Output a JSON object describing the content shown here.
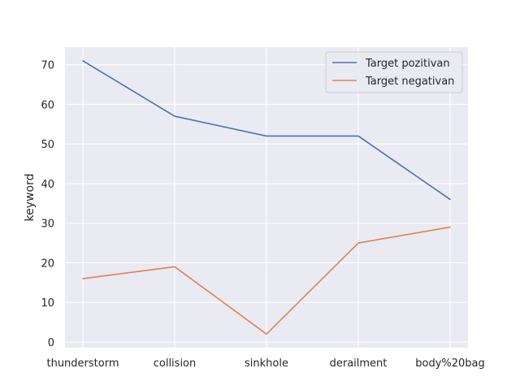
{
  "chart_data": {
    "type": "line",
    "title": "",
    "xlabel": "",
    "ylabel": "keyword",
    "categories": [
      "thunderstorm",
      "collision",
      "sinkhole",
      "derailment",
      "body%20bag"
    ],
    "series": [
      {
        "name": "Target pozitivan",
        "color": "#4c72b0",
        "values": [
          71,
          57,
          52,
          52,
          36
        ]
      },
      {
        "name": "Target negativan",
        "color": "#dd8452",
        "values": [
          16,
          19,
          2,
          25,
          29
        ]
      }
    ],
    "ylim": [
      -1.45,
      74.45
    ],
    "yticks": [
      0,
      10,
      20,
      30,
      40,
      50,
      60,
      70
    ],
    "grid": true,
    "legend": "top-right",
    "background": "#eaeaf2",
    "grid_color": "#ffffff"
  }
}
